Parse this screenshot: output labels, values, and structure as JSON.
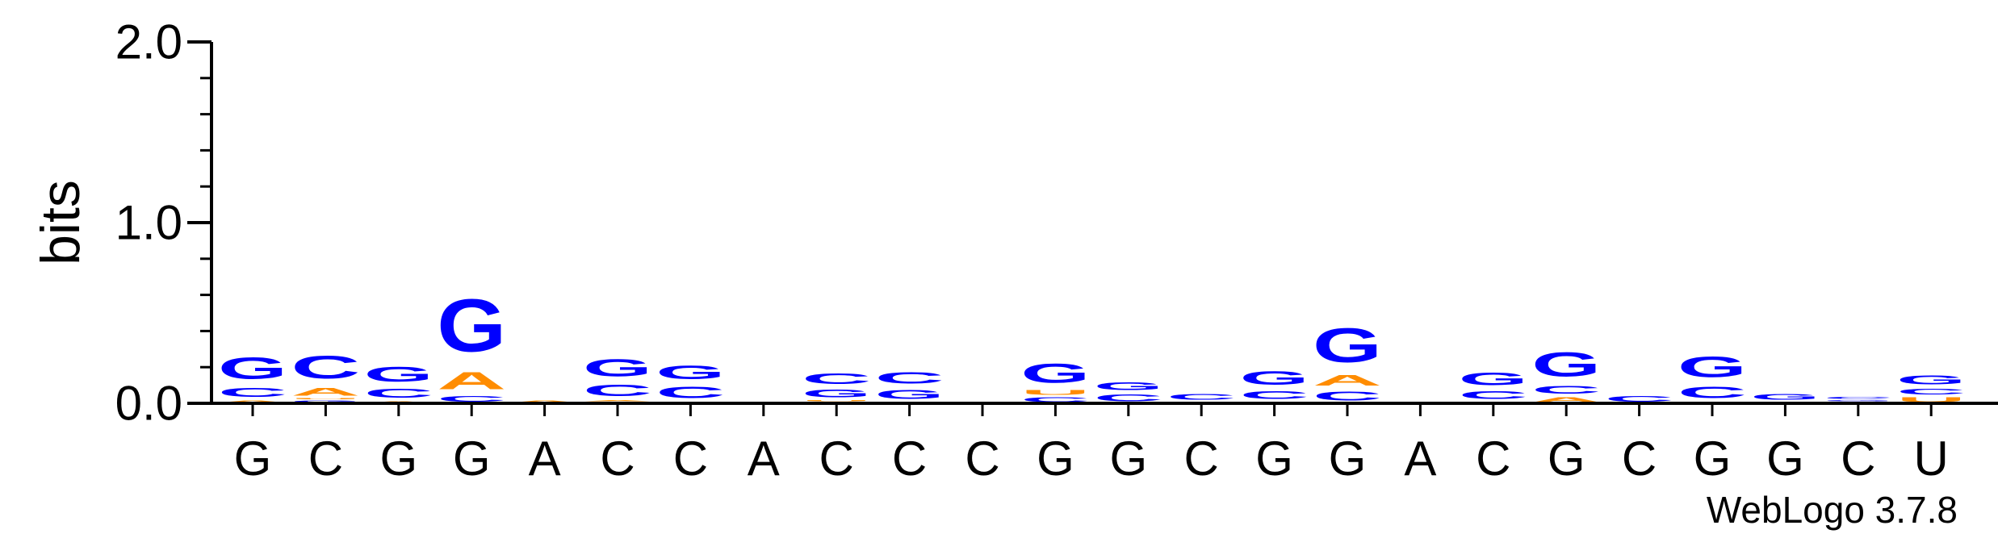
{
  "chart_data": {
    "type": "sequence-logo",
    "ylabel": "bits",
    "ylim": [
      0,
      2
    ],
    "yticks": [
      "0.0",
      "1.0",
      "2.0"
    ],
    "y_minor_step": 0.2,
    "footer": "WebLogo 3.7.8",
    "colors": {
      "G": "#0000ff",
      "C": "#0000ff",
      "A": "#ff8c00",
      "U": "#ff8c00"
    },
    "positions": [
      {
        "label": "G",
        "stack": [
          [
            "A",
            0.02
          ],
          [
            "C",
            0.08
          ],
          [
            "G",
            0.19
          ]
        ]
      },
      {
        "label": "C",
        "stack": [
          [
            "G",
            0.02
          ],
          [
            "U",
            0.01
          ],
          [
            "A",
            0.07
          ],
          [
            "C",
            0.2
          ]
        ]
      },
      {
        "label": "G",
        "stack": [
          [
            "A",
            0.015
          ],
          [
            "C",
            0.08
          ],
          [
            "G",
            0.13
          ]
        ]
      },
      {
        "label": "G",
        "stack": [
          [
            "C",
            0.05
          ],
          [
            "A",
            0.15
          ],
          [
            "G",
            0.46
          ]
        ]
      },
      {
        "label": "A",
        "stack": [
          [
            "A",
            0.02
          ]
        ]
      },
      {
        "label": "C",
        "stack": [
          [
            "U",
            0.01
          ],
          [
            "A",
            0.01
          ],
          [
            "C",
            0.1
          ],
          [
            "G",
            0.15
          ]
        ]
      },
      {
        "label": "C",
        "stack": [
          [
            "A",
            0.01
          ],
          [
            "C",
            0.1
          ],
          [
            "G",
            0.12
          ]
        ]
      },
      {
        "label": "A",
        "stack": []
      },
      {
        "label": "C",
        "stack": [
          [
            "A",
            0.01
          ],
          [
            "U",
            0.01
          ],
          [
            "G",
            0.07
          ],
          [
            "C",
            0.09
          ]
        ]
      },
      {
        "label": "C",
        "stack": [
          [
            "A",
            0.01
          ],
          [
            "G",
            0.08
          ],
          [
            "C",
            0.1
          ]
        ]
      },
      {
        "label": "C",
        "stack": []
      },
      {
        "label": "G",
        "stack": [
          [
            "C",
            0.04
          ],
          [
            "U",
            0.04
          ],
          [
            "G",
            0.17
          ]
        ]
      },
      {
        "label": "G",
        "stack": [
          [
            "C",
            0.06
          ],
          [
            "G",
            0.07
          ]
        ]
      },
      {
        "label": "C",
        "stack": [
          [
            "U",
            0.01
          ],
          [
            "C",
            0.05
          ]
        ]
      },
      {
        "label": "G",
        "stack": [
          [
            "A",
            0.01
          ],
          [
            "C",
            0.07
          ],
          [
            "G",
            0.12
          ]
        ]
      },
      {
        "label": "G",
        "stack": [
          [
            "C",
            0.08
          ],
          [
            "A",
            0.09
          ],
          [
            "G",
            0.3
          ]
        ]
      },
      {
        "label": "A",
        "stack": []
      },
      {
        "label": "C",
        "stack": [
          [
            "A",
            0.01
          ],
          [
            "C",
            0.07
          ],
          [
            "G",
            0.11
          ]
        ]
      },
      {
        "label": "G",
        "stack": [
          [
            "A",
            0.04
          ],
          [
            "C",
            0.07
          ],
          [
            "G",
            0.21
          ]
        ]
      },
      {
        "label": "C",
        "stack": [
          [
            "C",
            0.05
          ]
        ]
      },
      {
        "label": "G",
        "stack": [
          [
            "A",
            0.01
          ],
          [
            "C",
            0.1
          ],
          [
            "G",
            0.18
          ]
        ]
      },
      {
        "label": "G",
        "stack": [
          [
            "U",
            0.01
          ],
          [
            "G",
            0.05
          ]
        ]
      },
      {
        "label": "C",
        "stack": [
          [
            "U",
            0.01
          ],
          [
            "G",
            0.01
          ],
          [
            "C",
            0.02
          ]
        ]
      },
      {
        "label": "U",
        "stack": [
          [
            "U",
            0.04
          ],
          [
            "C",
            0.05
          ],
          [
            "G",
            0.08
          ]
        ]
      }
    ]
  }
}
